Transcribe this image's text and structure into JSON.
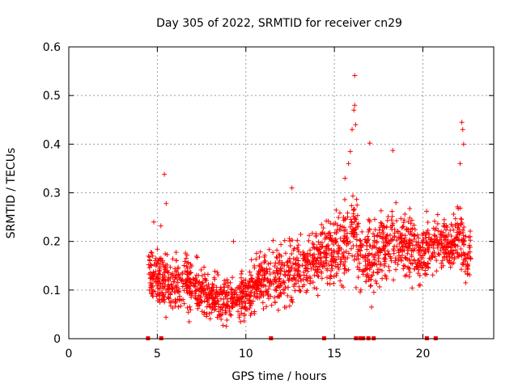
{
  "chart_data": {
    "type": "scatter",
    "title": "Day 305 of 2022, SRMTID for receiver cn29",
    "xlabel": "GPS time / hours",
    "ylabel": "SRMTID / TECUs",
    "xlim": [
      0,
      24
    ],
    "ylim": [
      0,
      0.6
    ],
    "xticks": [
      0,
      5,
      10,
      15,
      20
    ],
    "yticks": [
      0,
      0.1,
      0.2,
      0.3,
      0.4,
      0.5,
      0.6
    ],
    "grid": true,
    "marker": "+",
    "color": "#ff0000",
    "series": [
      {
        "name": "SRMTID",
        "profile": [
          [
            4.5,
            0.14,
            0.03
          ],
          [
            5.0,
            0.12,
            0.04
          ],
          [
            5.5,
            0.11,
            0.04
          ],
          [
            6.0,
            0.11,
            0.035
          ],
          [
            6.5,
            0.12,
            0.035
          ],
          [
            7.0,
            0.11,
            0.035
          ],
          [
            7.5,
            0.1,
            0.03
          ],
          [
            8.0,
            0.09,
            0.03
          ],
          [
            8.5,
            0.085,
            0.03
          ],
          [
            9.0,
            0.08,
            0.03
          ],
          [
            9.5,
            0.08,
            0.03
          ],
          [
            10.0,
            0.09,
            0.03
          ],
          [
            10.5,
            0.11,
            0.035
          ],
          [
            11.0,
            0.12,
            0.035
          ],
          [
            11.5,
            0.13,
            0.04
          ],
          [
            12.0,
            0.13,
            0.04
          ],
          [
            12.5,
            0.14,
            0.04
          ],
          [
            13.0,
            0.14,
            0.04
          ],
          [
            13.5,
            0.15,
            0.04
          ],
          [
            14.0,
            0.16,
            0.045
          ],
          [
            14.5,
            0.18,
            0.045
          ],
          [
            15.0,
            0.18,
            0.045
          ],
          [
            15.5,
            0.2,
            0.05
          ],
          [
            16.0,
            0.22,
            0.06
          ],
          [
            16.5,
            0.17,
            0.05
          ],
          [
            17.0,
            0.17,
            0.05
          ],
          [
            17.5,
            0.18,
            0.05
          ],
          [
            18.0,
            0.2,
            0.05
          ],
          [
            18.5,
            0.2,
            0.05
          ],
          [
            19.0,
            0.2,
            0.05
          ],
          [
            19.5,
            0.18,
            0.045
          ],
          [
            20.0,
            0.18,
            0.045
          ],
          [
            20.5,
            0.19,
            0.04
          ],
          [
            21.0,
            0.2,
            0.04
          ],
          [
            21.5,
            0.19,
            0.04
          ],
          [
            22.0,
            0.22,
            0.045
          ],
          [
            22.5,
            0.16,
            0.035
          ],
          [
            22.7,
            0.16,
            0.035
          ]
        ],
        "outliers": [
          [
            5.4,
            0.338
          ],
          [
            5.5,
            0.278
          ],
          [
            5.2,
            0.232
          ],
          [
            4.8,
            0.24
          ],
          [
            9.3,
            0.2
          ],
          [
            12.6,
            0.31
          ],
          [
            15.9,
            0.385
          ],
          [
            16.0,
            0.43
          ],
          [
            16.1,
            0.47
          ],
          [
            16.15,
            0.48
          ],
          [
            16.2,
            0.44
          ],
          [
            16.15,
            0.541
          ],
          [
            15.6,
            0.33
          ],
          [
            15.8,
            0.36
          ],
          [
            17.0,
            0.402
          ],
          [
            18.3,
            0.387
          ],
          [
            22.2,
            0.445
          ],
          [
            22.25,
            0.43
          ],
          [
            22.3,
            0.4
          ],
          [
            22.1,
            0.36
          ],
          [
            17.1,
            0.065
          ],
          [
            8.6,
            0.04
          ],
          [
            9.7,
            0.035
          ],
          [
            6.8,
            0.035
          ]
        ],
        "gaps": [
          4.45,
          5.2,
          11.4,
          14.4,
          16.2,
          16.45,
          16.6,
          16.9,
          17.2,
          20.2,
          20.7
        ]
      }
    ]
  }
}
